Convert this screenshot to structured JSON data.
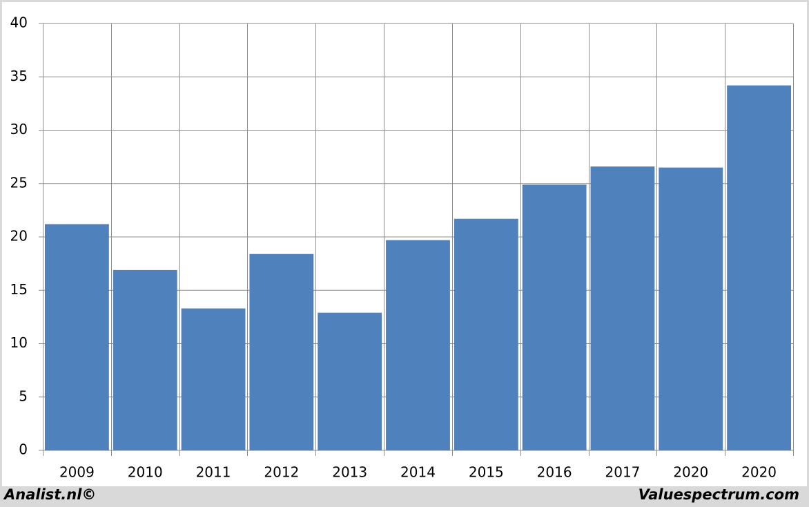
{
  "chart_data": {
    "type": "bar",
    "categories": [
      "2009",
      "2010",
      "2011",
      "2012",
      "2013",
      "2014",
      "2015",
      "2016",
      "2017",
      "2020",
      "2020"
    ],
    "values": [
      21.2,
      16.9,
      13.3,
      18.4,
      12.9,
      19.7,
      21.7,
      24.9,
      26.6,
      26.5,
      34.2
    ],
    "color": "#4f81bd",
    "ylim": [
      0,
      40
    ],
    "yticks": [
      0,
      5,
      10,
      15,
      20,
      25,
      30,
      35,
      40
    ],
    "grid": true,
    "source_left": "Analist.nl©",
    "source_right": "Valuespectrum.com"
  }
}
